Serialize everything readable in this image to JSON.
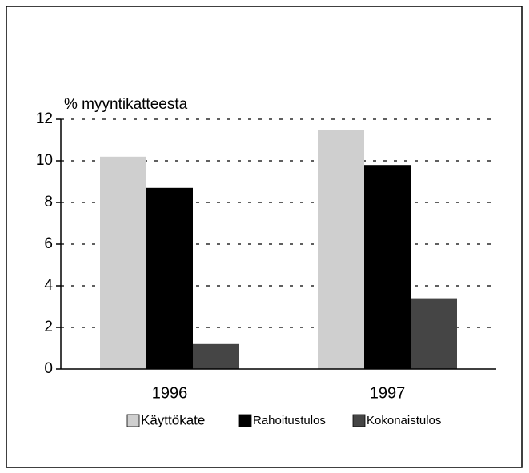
{
  "chart_data": {
    "type": "bar",
    "y_label": "% myyntikatteesta",
    "categories": [
      "1996",
      "1997"
    ],
    "series": [
      {
        "name": "Käyttökate",
        "color": "#cfcfcf",
        "values": [
          10.2,
          11.5
        ]
      },
      {
        "name": "Rahoitustulos",
        "color": "#000000",
        "values": [
          8.7,
          9.8
        ]
      },
      {
        "name": "Kokonaistulos",
        "color": "#454545",
        "values": [
          1.2,
          3.4
        ]
      }
    ],
    "ylim": [
      0,
      12
    ],
    "yticks": [
      0,
      2,
      4,
      6,
      8,
      10,
      12
    ],
    "grid": true,
    "legend": "bottom"
  }
}
